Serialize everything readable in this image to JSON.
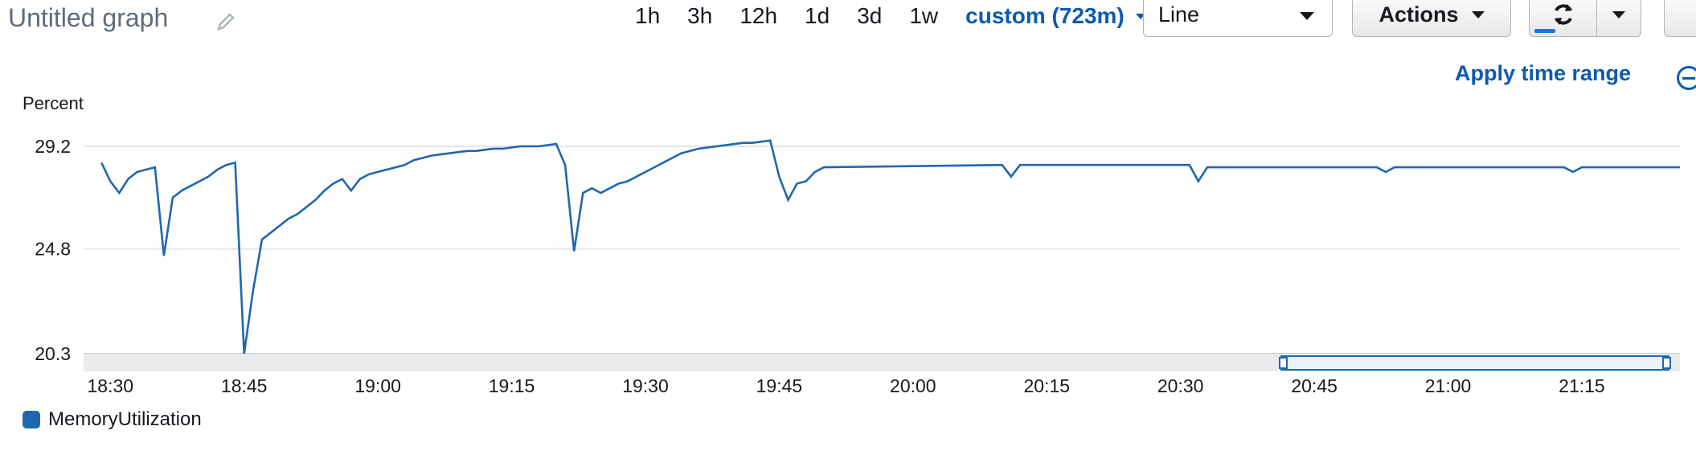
{
  "header": {
    "title": "Untitled graph",
    "edit_icon": "pencil-icon",
    "ranges": [
      "1h",
      "3h",
      "12h",
      "1d",
      "3d",
      "1w"
    ],
    "custom_range": "custom (723m)",
    "chart_type_select": "Line",
    "actions_label": "Actions",
    "refresh_icon": "refresh-icon",
    "apply_time_range": "Apply time range"
  },
  "legend": {
    "series_name": "MemoryUtilization",
    "color": "#1f67b0"
  },
  "chart_data": {
    "type": "line",
    "ylabel": "Percent",
    "yticks": [
      "29.2",
      "24.8",
      "20.3"
    ],
    "ytick_values": [
      29.2,
      24.8,
      20.3
    ],
    "ylim": [
      20.3,
      29.2
    ],
    "xlim": [
      "18:27",
      "21:26"
    ],
    "xticks": [
      "18:30",
      "18:45",
      "19:00",
      "19:15",
      "19:30",
      "19:45",
      "20:00",
      "20:15",
      "20:30",
      "20:45",
      "21:00",
      "21:15"
    ],
    "grid": true,
    "series": [
      {
        "name": "MemoryUtilization",
        "color": "#1f67b0",
        "x": [
          "18:29",
          "18:30",
          "18:31",
          "18:32",
          "18:33",
          "18:34",
          "18:35",
          "18:36",
          "18:37",
          "18:38",
          "18:39",
          "18:40",
          "18:41",
          "18:42",
          "18:43",
          "18:44",
          "18:45",
          "18:46",
          "18:47",
          "18:48",
          "18:49",
          "18:50",
          "18:51",
          "18:52",
          "18:53",
          "18:54",
          "18:55",
          "18:56",
          "18:57",
          "18:58",
          "18:59",
          "19:00",
          "19:01",
          "19:02",
          "19:03",
          "19:04",
          "19:05",
          "19:06",
          "19:07",
          "19:08",
          "19:09",
          "19:10",
          "19:11",
          "19:12",
          "19:13",
          "19:14",
          "19:15",
          "19:16",
          "19:17",
          "19:18",
          "19:19",
          "19:20",
          "19:21",
          "19:22",
          "19:23",
          "19:24",
          "19:25",
          "19:26",
          "19:27",
          "19:28",
          "19:29",
          "19:30",
          "19:31",
          "19:32",
          "19:33",
          "19:34",
          "19:35",
          "19:36",
          "19:37",
          "19:38",
          "19:39",
          "19:40",
          "19:41",
          "19:42",
          "19:43",
          "19:44",
          "19:45",
          "19:46",
          "19:47",
          "19:48",
          "19:49",
          "19:50",
          "20:10",
          "20:11",
          "20:12",
          "20:31",
          "20:32",
          "20:33",
          "20:52",
          "20:53",
          "20:54",
          "21:13",
          "21:14",
          "21:15",
          "21:26"
        ],
        "y": [
          28.5,
          27.7,
          27.2,
          27.8,
          28.1,
          28.2,
          28.3,
          24.5,
          27.0,
          27.3,
          27.5,
          27.7,
          27.9,
          28.2,
          28.4,
          28.5,
          20.3,
          23.0,
          25.2,
          25.5,
          25.8,
          26.1,
          26.3,
          26.6,
          26.9,
          27.3,
          27.6,
          27.8,
          27.3,
          27.8,
          28.0,
          28.1,
          28.2,
          28.3,
          28.4,
          28.6,
          28.7,
          28.8,
          28.85,
          28.9,
          28.95,
          29.0,
          29.0,
          29.05,
          29.1,
          29.1,
          29.15,
          29.2,
          29.2,
          29.2,
          29.25,
          29.3,
          28.4,
          24.7,
          27.2,
          27.4,
          27.2,
          27.4,
          27.6,
          27.7,
          27.9,
          28.1,
          28.3,
          28.5,
          28.7,
          28.9,
          29.0,
          29.1,
          29.15,
          29.2,
          29.25,
          29.3,
          29.35,
          29.35,
          29.4,
          29.45,
          27.9,
          26.9,
          27.6,
          27.7,
          28.1,
          28.3,
          28.4,
          27.9,
          28.4,
          28.4,
          27.7,
          28.3,
          28.3,
          28.1,
          28.3,
          28.3,
          28.1,
          28.3,
          28.3
        ]
      }
    ]
  }
}
